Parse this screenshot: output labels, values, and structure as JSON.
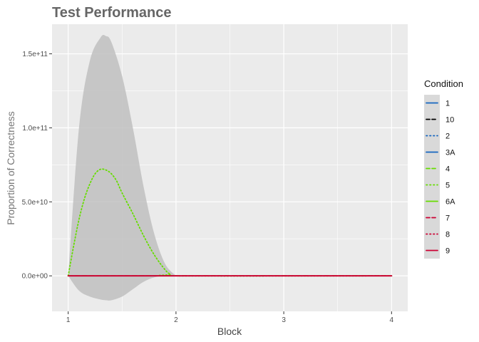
{
  "chart_data": {
    "type": "line",
    "title": "Test Performance",
    "xlabel": "Block",
    "ylabel": "Proportion of Correctness",
    "xlim": [
      0.85,
      4.15
    ],
    "ylim": [
      -24000000000,
      170000000000
    ],
    "x_ticks": [
      1,
      2,
      3,
      4
    ],
    "x_tick_labels": [
      "1",
      "2",
      "3",
      "4"
    ],
    "y_ticks": [
      0,
      50000000000,
      100000000000,
      150000000000
    ],
    "y_tick_labels": [
      "0.0e+00",
      "5.0e+10",
      "1.0e+11",
      "1.5e+11"
    ],
    "grid": true,
    "legend_position": "right",
    "legend": {
      "title": "Condition",
      "entries": [
        {
          "label": "1",
          "color": "#1565C0",
          "dash": "solid"
        },
        {
          "label": "10",
          "color": "#000000",
          "dash": "dashed"
        },
        {
          "label": "2",
          "color": "#1565C0",
          "dash": "dotted"
        },
        {
          "label": "3A",
          "color": "#1565C0",
          "dash": "solid"
        },
        {
          "label": "4",
          "color": "#66DD00",
          "dash": "dashed"
        },
        {
          "label": "5",
          "color": "#66DD00",
          "dash": "dotted"
        },
        {
          "label": "6A",
          "color": "#66DD00",
          "dash": "solid"
        },
        {
          "label": "7",
          "color": "#CC0033",
          "dash": "dashed"
        },
        {
          "label": "8",
          "color": "#CC0033",
          "dash": "dotted"
        },
        {
          "label": "9",
          "color": "#CC0033",
          "dash": "solid"
        }
      ]
    },
    "ribbon": {
      "color": "#bfbfbf",
      "x": [
        1.0,
        1.1,
        1.2,
        1.3,
        1.35,
        1.4,
        1.5,
        1.6,
        1.7,
        1.8,
        1.9,
        2.0
      ],
      "upper": [
        0,
        100000000000,
        145000000000,
        161000000000,
        162000000000,
        158000000000,
        135000000000,
        100000000000,
        60000000000,
        28000000000,
        8000000000,
        0
      ],
      "lower": [
        0,
        -10000000000,
        -14000000000,
        -16000000000,
        -16500000000,
        -16500000000,
        -14000000000,
        -9000000000,
        -4000000000,
        -1000000000,
        0,
        0
      ]
    },
    "series": [
      {
        "name": "5",
        "color": "#66DD00",
        "dash": "dotted",
        "x": [
          1.0,
          1.05,
          1.1,
          1.15,
          1.2,
          1.25,
          1.3,
          1.35,
          1.4,
          1.45,
          1.5,
          1.6,
          1.7,
          1.8,
          1.9,
          1.95,
          2.0,
          4.0
        ],
        "y": [
          0,
          20000000000,
          38000000000,
          52000000000,
          62000000000,
          69000000000,
          72000000000,
          71500000000,
          69000000000,
          64000000000,
          56000000000,
          42000000000,
          27000000000,
          14000000000,
          4000000000,
          1000000000,
          0,
          0
        ]
      },
      {
        "name": "4",
        "color": "#66DD00",
        "dash": "dashed",
        "x": [
          1,
          4
        ],
        "y": [
          0,
          0
        ]
      },
      {
        "name": "9",
        "color": "#CC0033",
        "dash": "solid",
        "x": [
          1,
          4
        ],
        "y": [
          0,
          0
        ]
      }
    ]
  }
}
